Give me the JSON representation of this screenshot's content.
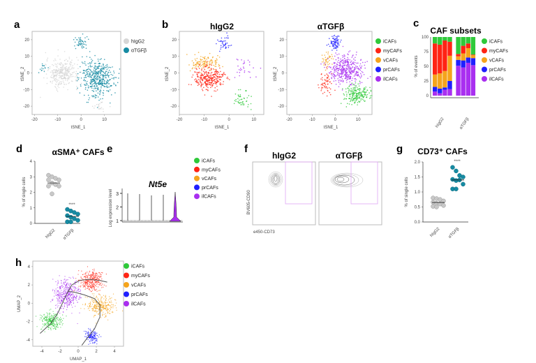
{
  "colors": {
    "iCAFs": "#2fc93a",
    "myCAFs": "#ff2414",
    "vCAFs": "#f5a41c",
    "prCAFs": "#1f1fff",
    "ilCAFs": "#a92ff0",
    "hIgG2": "#d6d6d6",
    "aTGFb": "#168ba3"
  },
  "subsets": [
    "iCAFs",
    "myCAFs",
    "vCAFs",
    "prCAFs",
    "ilCAFs"
  ],
  "panels": {
    "a": {
      "label": "a"
    },
    "b": {
      "label": "b"
    },
    "c": {
      "label": "c"
    },
    "d": {
      "label": "d"
    },
    "e": {
      "label": "e"
    },
    "f": {
      "label": "f"
    },
    "g": {
      "label": "g"
    },
    "h": {
      "label": "h"
    }
  },
  "chart_data": [
    {
      "id": "a",
      "type": "scatter",
      "xlabel": "tSNE_1",
      "ylabel": "tSNE_2",
      "xlim": [
        -21,
        17
      ],
      "ylim": [
        -25,
        25
      ],
      "xticks": [
        -20,
        -10,
        0,
        10
      ],
      "yticks": [
        -20,
        -10,
        0,
        10,
        20
      ],
      "legend": [
        "hIgG2",
        "αTGFβ"
      ],
      "legend_position": "right",
      "clusters": [
        {
          "group": "hIgG2",
          "center": [
            -8,
            0
          ],
          "spread": [
            5,
            6
          ],
          "n": 320
        },
        {
          "group": "hIgG2",
          "center": [
            8,
            -20
          ],
          "spread": [
            2,
            2
          ],
          "n": 20
        },
        {
          "group": "αTGFβ",
          "center": [
            7,
            -3
          ],
          "spread": [
            5,
            8
          ],
          "n": 450
        },
        {
          "group": "αTGFβ",
          "center": [
            0,
            18
          ],
          "spread": [
            2,
            3
          ],
          "n": 50
        },
        {
          "group": "αTGFβ",
          "center": [
            -16,
            3
          ],
          "spread": [
            2,
            2
          ],
          "n": 15
        }
      ]
    },
    {
      "id": "b1",
      "type": "scatter",
      "title": "hIgG2",
      "xlabel": "tSNE_1",
      "ylabel": "tSNE_2",
      "xlim": [
        -20,
        14
      ],
      "ylim": [
        -25,
        25
      ],
      "xticks": [
        -20,
        -10,
        0,
        10
      ],
      "yticks": [
        -20,
        -10,
        0,
        10,
        20
      ],
      "clusters": [
        {
          "group": "prCAFs",
          "center": [
            -2,
            18
          ],
          "spread": [
            2,
            3
          ],
          "n": 40
        },
        {
          "group": "vCAFs",
          "center": [
            -10,
            6
          ],
          "spread": [
            5,
            3
          ],
          "n": 120
        },
        {
          "group": "myCAFs",
          "center": [
            -8,
            -3
          ],
          "spread": [
            4,
            5
          ],
          "n": 300
        },
        {
          "group": "ilCAFs",
          "center": [
            6,
            4
          ],
          "spread": [
            5,
            5
          ],
          "n": 30
        },
        {
          "group": "iCAFs",
          "center": [
            5,
            -16
          ],
          "spread": [
            3,
            4
          ],
          "n": 45
        }
      ]
    },
    {
      "id": "b2",
      "type": "scatter",
      "title": "αTGFβ",
      "xlabel": "tSNE_1",
      "ylabel": "tSNE_2",
      "xlim": [
        -21,
        16
      ],
      "ylim": [
        -25,
        25
      ],
      "xticks": [
        -20,
        -10,
        0,
        10
      ],
      "yticks": [
        -20,
        -10,
        0,
        10,
        20
      ],
      "legend": [
        "iCAFs",
        "myCAFs",
        "vCAFs",
        "prCAFs",
        "ilCAFs"
      ],
      "legend_position": "right",
      "clusters": [
        {
          "group": "prCAFs",
          "center": [
            0,
            18
          ],
          "spread": [
            2,
            3
          ],
          "n": 80
        },
        {
          "group": "vCAFs",
          "center": [
            -3,
            8
          ],
          "spread": [
            2,
            3
          ],
          "n": 40
        },
        {
          "group": "myCAFs",
          "center": [
            -4,
            -6
          ],
          "spread": [
            2,
            5
          ],
          "n": 60
        },
        {
          "group": "ilCAFs",
          "center": [
            5,
            2
          ],
          "spread": [
            5,
            6
          ],
          "n": 400
        },
        {
          "group": "iCAFs",
          "center": [
            9,
            -13
          ],
          "spread": [
            4,
            4
          ],
          "n": 200
        }
      ]
    },
    {
      "id": "c",
      "type": "bar",
      "stacked": true,
      "title": "CAF subsets",
      "ylabel": "% of events",
      "ylim": [
        0,
        100
      ],
      "yticks": [
        0,
        25,
        50,
        75,
        100
      ],
      "groups": [
        "hIgG2",
        "αTGFβ"
      ],
      "legend": [
        "iCAFs",
        "myCAFs",
        "vCAFs",
        "prCAFs",
        "ilCAFs"
      ],
      "legend_position": "right",
      "bars": [
        {
          "group": "hIgG2",
          "ilCAFs": 7,
          "prCAFs": 8,
          "vCAFs": 21,
          "myCAFs": 53,
          "iCAFs": 11
        },
        {
          "group": "hIgG2",
          "ilCAFs": 4,
          "prCAFs": 8,
          "vCAFs": 26,
          "myCAFs": 49,
          "iCAFs": 13
        },
        {
          "group": "hIgG2",
          "ilCAFs": 10,
          "prCAFs": 4,
          "vCAFs": 28,
          "myCAFs": 52,
          "iCAFs": 6
        },
        {
          "group": "hIgG2",
          "ilCAFs": 11,
          "prCAFs": 14,
          "vCAFs": 43,
          "myCAFs": 24,
          "iCAFs": 8
        },
        {
          "group": "αTGFβ",
          "ilCAFs": 51,
          "prCAFs": 10,
          "vCAFs": 6,
          "myCAFs": 4,
          "iCAFs": 29
        },
        {
          "group": "αTGFβ",
          "ilCAFs": 48,
          "prCAFs": 12,
          "vCAFs": 12,
          "myCAFs": 13,
          "iCAFs": 15
        },
        {
          "group": "αTGFβ",
          "ilCAFs": 56,
          "prCAFs": 9,
          "vCAFs": 16,
          "myCAFs": 8,
          "iCAFs": 11
        },
        {
          "group": "αTGFβ",
          "ilCAFs": 52,
          "prCAFs": 12,
          "vCAFs": 5,
          "myCAFs": 1,
          "iCAFs": 30
        }
      ]
    },
    {
      "id": "d",
      "type": "scatter",
      "title": "αSMA⁺ CAFs",
      "ylabel": "% of single cells",
      "ylim": [
        0,
        4
      ],
      "yticks": [
        0,
        1,
        2,
        3,
        4
      ],
      "categories": [
        "hIgG2",
        "αTGFβ"
      ],
      "significance": "****",
      "series": [
        {
          "category": "hIgG2",
          "values": [
            3.1,
            3.0,
            2.9,
            2.8,
            2.8,
            2.6,
            2.5,
            2.4,
            2.4,
            1.9
          ],
          "mean": 2.6
        },
        {
          "category": "αTGFβ",
          "values": [
            0.9,
            0.8,
            0.7,
            0.6,
            0.5,
            0.4,
            0.3,
            0.2,
            0.1,
            0.1
          ],
          "mean": 0.45
        }
      ]
    },
    {
      "id": "e",
      "type": "violin",
      "title": "Nt5e",
      "ylabel": "Log expression level",
      "yticks": [
        1,
        2,
        3
      ],
      "categories": [
        "iCAFs",
        "myCAFs",
        "vCAFs",
        "prCAFs",
        "ilCAFs"
      ],
      "max": [
        3.0,
        2.95,
        2.85,
        2.9,
        3.1
      ],
      "legend": [
        "iCAFs",
        "myCAFs",
        "vCAFs",
        "prCAFs",
        "ilCAFs"
      ]
    },
    {
      "id": "f",
      "type": "contour",
      "panels": [
        "hIgG2",
        "αTGFβ"
      ],
      "xlabel": "e450-CD73",
      "ylabel": "BV605-CD90"
    },
    {
      "id": "g",
      "type": "scatter",
      "title": "CD73⁺ CAFs",
      "ylabel": "% of single cells",
      "ylim": [
        0,
        2
      ],
      "yticks": [
        "0.0",
        "0.5",
        "1.0",
        "1.5",
        "2.0"
      ],
      "categories": [
        "hIgG2",
        "αTGFβ"
      ],
      "significance": "****",
      "series": [
        {
          "category": "hIgG2",
          "values": [
            0.8,
            0.78,
            0.75,
            0.7,
            0.66,
            0.62,
            0.6,
            0.55,
            0.52,
            0.5
          ],
          "mean": 0.65
        },
        {
          "category": "αTGFβ",
          "values": [
            1.82,
            1.7,
            1.55,
            1.5,
            1.42,
            1.38,
            1.4,
            1.26,
            1.1,
            1.1
          ],
          "mean": 1.4
        }
      ]
    },
    {
      "id": "h",
      "type": "scatter",
      "xlabel": "UMAP_1",
      "ylabel": "UMAP_2",
      "xlim": [
        -5,
        5
      ],
      "ylim": [
        -4.7,
        4.6
      ],
      "xticks": [
        -4,
        -2,
        0,
        2,
        4
      ],
      "yticks": [
        -4,
        -2,
        0,
        2,
        4
      ],
      "legend": [
        "iCAFs",
        "myCAFs",
        "vCAFs",
        "prCAFs",
        "ilCAFs"
      ],
      "legend_position": "right",
      "clusters": [
        {
          "group": "iCAFs",
          "center": [
            -3,
            -2
          ],
          "spread": [
            0.8,
            0.7
          ],
          "n": 250
        },
        {
          "group": "myCAFs",
          "center": [
            1.4,
            2.4
          ],
          "spread": [
            0.9,
            0.8
          ],
          "n": 300
        },
        {
          "group": "vCAFs",
          "center": [
            2.5,
            -0.3
          ],
          "spread": [
            1,
            0.8
          ],
          "n": 300
        },
        {
          "group": "prCAFs",
          "center": [
            1.5,
            -3.6
          ],
          "spread": [
            0.5,
            0.5
          ],
          "n": 150
        },
        {
          "group": "ilCAFs",
          "center": [
            -1.3,
            1
          ],
          "spread": [
            1,
            1.2
          ],
          "n": 400
        }
      ],
      "trajectories": [
        [
          [
            -4.2,
            -3.3
          ],
          [
            -3,
            -2.2
          ],
          [
            -2.2,
            -1
          ],
          [
            -1.6,
            0.3
          ],
          [
            -1.1,
            1.3
          ],
          [
            -0.7,
            2
          ],
          [
            0.2,
            2.5
          ],
          [
            1.2,
            2.6
          ],
          [
            2.3,
            2.5
          ],
          [
            3.2,
            2.3
          ]
        ],
        [
          [
            -1.1,
            1.3
          ],
          [
            -0.4,
            1.2
          ],
          [
            0.7,
            0.9
          ],
          [
            1.8,
            0.5
          ],
          [
            2.4,
            -0.2
          ],
          [
            2.4,
            -1.5
          ],
          [
            1.8,
            -2.8
          ],
          [
            1.0,
            -3.8
          ],
          [
            0.4,
            -4.6
          ]
        ]
      ]
    }
  ],
  "texts": {
    "a_legend": [
      "hIgG2",
      "αTGFβ"
    ],
    "tsne1": "tSNE_1",
    "tsne2": "tSNE_2",
    "b_title1": "hIgG2",
    "b_title2": "αTGFβ",
    "c_title": "CAF subsets",
    "c_ylabel": "% of events",
    "c_groups": [
      "hIgG2",
      "αTGFβ"
    ],
    "d_title": "αSMA⁺ CAFs",
    "single_cells": "% of single cells",
    "stars": "****",
    "e_title": "Nt5e",
    "e_ylabel": "Log expression level",
    "f_title1": "hIgG2",
    "f_title2": "αTGFβ",
    "f_xlabel": "e450-CD73",
    "f_ylabel": "BV605-CD90",
    "g_title": "CD73⁺ CAFs",
    "umap1": "UMAP_1",
    "umap2": "UMAP_2",
    "cats": [
      "hIgG2",
      "αTGFβ"
    ]
  }
}
